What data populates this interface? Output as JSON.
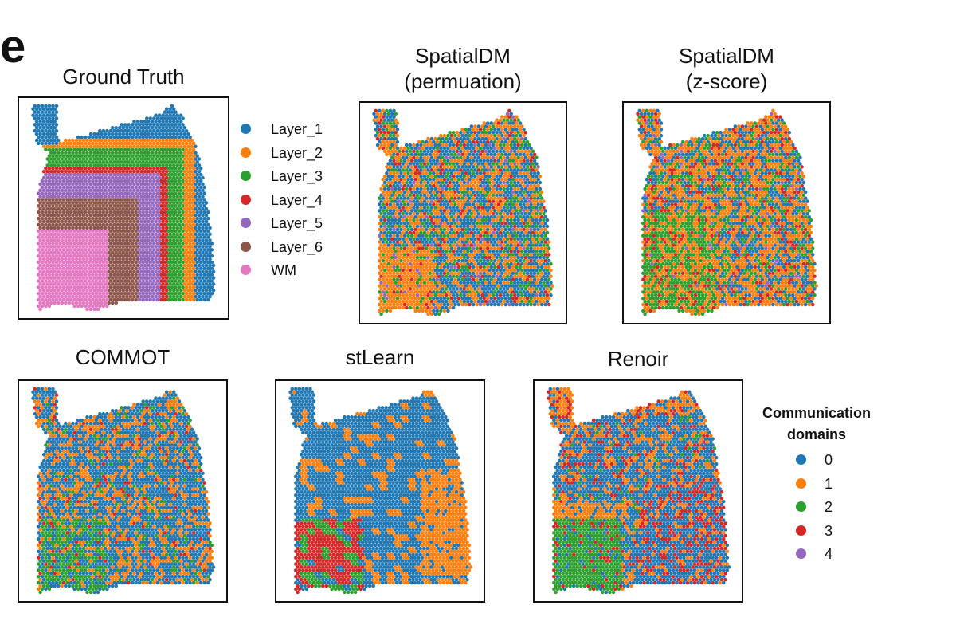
{
  "panel_label": "e",
  "colors": {
    "layer": [
      "#1f77b4",
      "#ff7f0e",
      "#2ca02c",
      "#d62728",
      "#9467bd",
      "#8c564b",
      "#e377c2"
    ],
    "domain": [
      "#1f77b4",
      "#ff7f0e",
      "#2ca02c",
      "#d62728",
      "#9467bd"
    ]
  },
  "chart_data": [
    {
      "type": "scatter",
      "title": "Ground Truth",
      "encoding": "layers",
      "legend": "right"
    },
    {
      "type": "scatter",
      "title": "SpatialDM\n(permuation)",
      "encoding": "domains",
      "mix": [
        0.44,
        0.3,
        0.15,
        0.08,
        0.03
      ]
    },
    {
      "type": "scatter",
      "title": "SpatialDM\n(z-score)",
      "encoding": "domains",
      "mix": [
        0.3,
        0.44,
        0.13,
        0.11,
        0.02
      ]
    },
    {
      "type": "scatter",
      "title": "COMMOT",
      "encoding": "domains",
      "mix": [
        0.62,
        0.27,
        0.06,
        0.05,
        0.0
      ]
    },
    {
      "type": "scatter",
      "title": "stLearn",
      "encoding": "domains",
      "mix": [
        0.78,
        0.2,
        0.01,
        0.01,
        0.0
      ]
    },
    {
      "type": "scatter",
      "title": "Renoir",
      "encoding": "domains",
      "mix": [
        0.6,
        0.25,
        0.05,
        0.1,
        0.0
      ]
    }
  ],
  "legend_layers": {
    "items": [
      "Layer_1",
      "Layer_2",
      "Layer_3",
      "Layer_4",
      "Layer_5",
      "Layer_6",
      "WM"
    ]
  },
  "legend_domains": {
    "title": "Communication\ndomains",
    "items": [
      "0",
      "1",
      "2",
      "3",
      "4"
    ]
  }
}
